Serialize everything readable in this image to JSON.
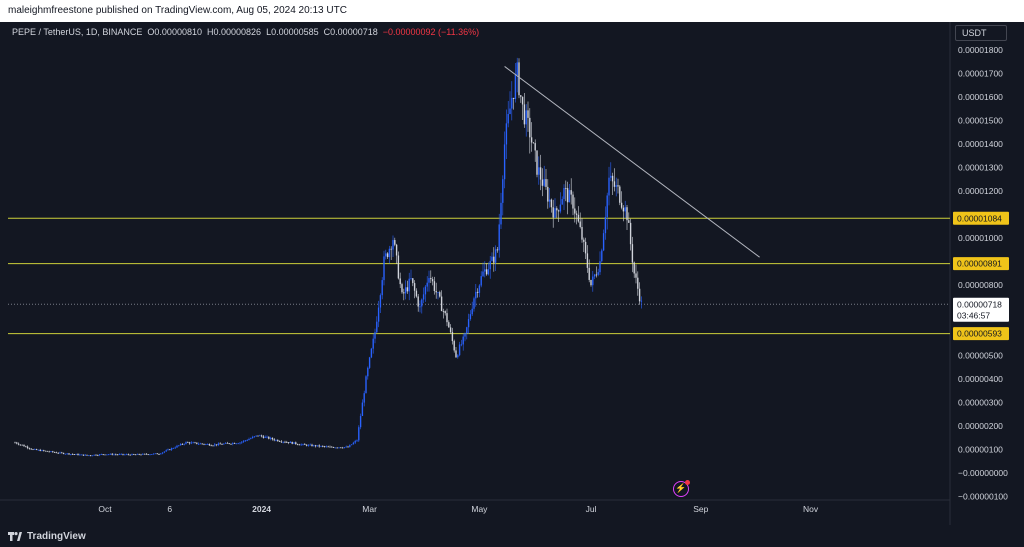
{
  "header": {
    "publish_line": "maleighmfreestone published on TradingView.com, Aug 05, 2024 20:13 UTC"
  },
  "legend": {
    "symbol": "PEPE / TetherUS, 1D, BINANCE",
    "o_label": "O",
    "o_value": "0.00000810",
    "h_label": "H",
    "h_value": "0.00000826",
    "l_label": "L",
    "l_value": "0.00000585",
    "c_label": "C",
    "c_value": "0.00000718",
    "change": "−0.00000092 (−11.36%)"
  },
  "currency_button": "USDT",
  "footer": {
    "brand": "TradingView"
  },
  "colors": {
    "background": "#131722",
    "candle": "#2962ff",
    "candle_down": "#d1d4dc",
    "level_line": "#cdd03a",
    "level_label_bg": "#f0c419",
    "trendline": "#b2b5be",
    "axis_text": "#d1d4dc"
  },
  "chart_data": {
    "type": "candlestick",
    "y_axis": {
      "min": -1e-06,
      "max": 1.9e-05,
      "ticks": [
        "0.00001800",
        "0.00001700",
        "0.00001600",
        "0.00001500",
        "0.00001400",
        "0.00001300",
        "0.00001200",
        "0.00001000",
        "0.00000800",
        "0.00000500",
        "0.00000400",
        "0.00000300",
        "0.00000200",
        "0.00000100",
        "−0.00000000",
        "−0.00000100"
      ],
      "tick_values": [
        1.8e-05,
        1.7e-05,
        1.6e-05,
        1.5e-05,
        1.4e-05,
        1.3e-05,
        1.2e-05,
        1e-05,
        8e-06,
        5e-06,
        4e-06,
        3e-06,
        2e-06,
        1e-06,
        0,
        -1e-06
      ]
    },
    "x_axis": {
      "labels": [
        "Oct",
        "6",
        "2024",
        "Mar",
        "May",
        "Jul",
        "Sep",
        "Nov"
      ],
      "label_days": [
        0,
        36,
        87,
        147,
        208,
        270,
        331,
        392
      ]
    },
    "levels": [
      {
        "value": 1.084e-05,
        "label": "0.00001084"
      },
      {
        "value": 8.91e-06,
        "label": "0.00000891"
      },
      {
        "value": 5.93e-06,
        "label": "0.00000593"
      }
    ],
    "current_price": {
      "value": 7.18e-06,
      "label": "0.00000718",
      "countdown": "03:46:57"
    },
    "trendline": [
      {
        "day": 222,
        "value": 1.73e-05
      },
      {
        "day": 317,
        "value": 1.08e-05
      }
    ],
    "series": [
      {
        "day": -50,
        "close": 1.3e-06
      },
      {
        "day": -40,
        "close": 1e-06
      },
      {
        "day": -25,
        "close": 8.5e-07
      },
      {
        "day": -10,
        "close": 7.5e-07
      },
      {
        "day": 0,
        "close": 8e-07
      },
      {
        "day": 15,
        "close": 7.8e-07
      },
      {
        "day": 30,
        "close": 8.2e-07
      },
      {
        "day": 45,
        "close": 1.3e-06
      },
      {
        "day": 60,
        "close": 1.2e-06
      },
      {
        "day": 75,
        "close": 1.3e-06
      },
      {
        "day": 85,
        "close": 1.6e-06
      },
      {
        "day": 95,
        "close": 1.4e-06
      },
      {
        "day": 110,
        "close": 1.2e-06
      },
      {
        "day": 125,
        "close": 1.1e-06
      },
      {
        "day": 135,
        "close": 1.1e-06
      },
      {
        "day": 140,
        "close": 1.4e-06
      },
      {
        "day": 145,
        "close": 4e-06
      },
      {
        "day": 150,
        "close": 6e-06
      },
      {
        "day": 155,
        "close": 9e-06
      },
      {
        "day": 160,
        "close": 1e-05
      },
      {
        "day": 165,
        "close": 7.5e-06
      },
      {
        "day": 170,
        "close": 8.2e-06
      },
      {
        "day": 175,
        "close": 7e-06
      },
      {
        "day": 180,
        "close": 8.5e-06
      },
      {
        "day": 185,
        "close": 7.5e-06
      },
      {
        "day": 190,
        "close": 6.5e-06
      },
      {
        "day": 195,
        "close": 5e-06
      },
      {
        "day": 200,
        "close": 5.8e-06
      },
      {
        "day": 205,
        "close": 7.5e-06
      },
      {
        "day": 210,
        "close": 8.5e-06
      },
      {
        "day": 215,
        "close": 9e-06
      },
      {
        "day": 218,
        "close": 9.5e-06
      },
      {
        "day": 222,
        "close": 1.4e-05
      },
      {
        "day": 226,
        "close": 1.6e-05
      },
      {
        "day": 229,
        "close": 1.7e-05
      },
      {
        "day": 232,
        "close": 1.55e-05
      },
      {
        "day": 236,
        "close": 1.45e-05
      },
      {
        "day": 240,
        "close": 1.3e-05
      },
      {
        "day": 245,
        "close": 1.2e-05
      },
      {
        "day": 250,
        "close": 1.1e-05
      },
      {
        "day": 255,
        "close": 1.2e-05
      },
      {
        "day": 260,
        "close": 1.15e-05
      },
      {
        "day": 265,
        "close": 1e-05
      },
      {
        "day": 270,
        "close": 8e-06
      },
      {
        "day": 275,
        "close": 9e-06
      },
      {
        "day": 280,
        "close": 1.25e-05
      },
      {
        "day": 285,
        "close": 1.2e-05
      },
      {
        "day": 290,
        "close": 1.1e-05
      },
      {
        "day": 294,
        "close": 8.5e-06
      },
      {
        "day": 298,
        "close": 7.2e-06
      }
    ]
  }
}
